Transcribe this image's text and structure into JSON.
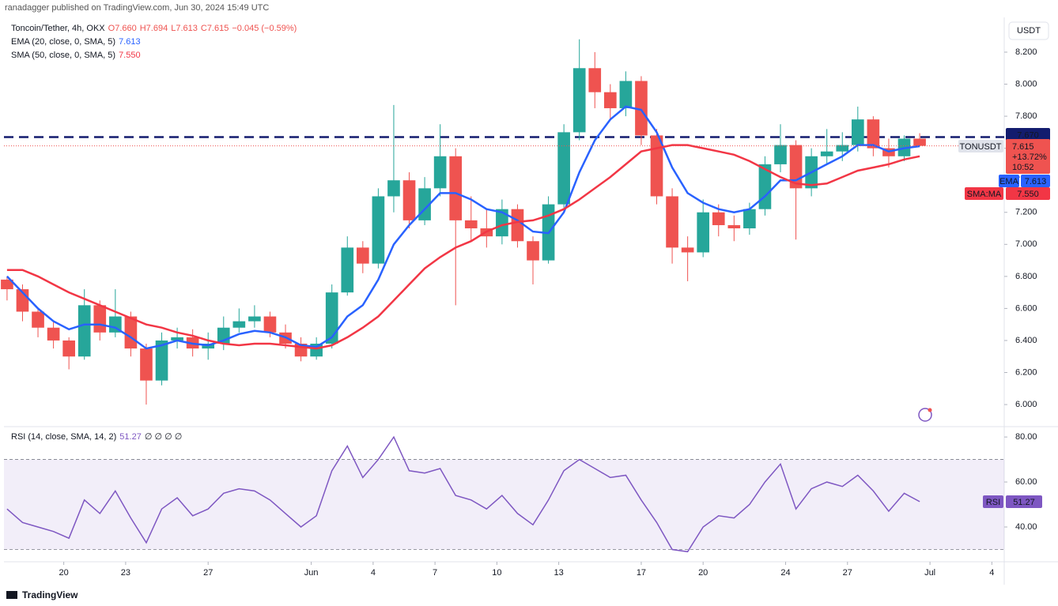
{
  "ui": {
    "publisher": "ranadagger published on TradingView.com, Jun 30, 2024 15:49 UTC",
    "legend": {
      "symbol": "Toncoin/Tether, 4h, OKX",
      "o": "O7.660",
      "h": "H7.694",
      "l": "L7.613",
      "c": "C7.615",
      "change": "−0.045 (−0.59%)",
      "ema": "EMA (20, close, 0, SMA, 5)",
      "ema_value": "7.613",
      "sma": "SMA (50, close, 0, SMA, 5)",
      "sma_value": "7.550",
      "rsi": "RSI (14, close, SMA, 14, 2)",
      "rsi_value": "51.27",
      "rsi_extra": "∅ ∅ ∅ ∅"
    },
    "currency": "USDT",
    "badges": {
      "last_symbol": "TONUSDT",
      "last_price": "7.615",
      "last_change": "+13.72%",
      "countdown": "10:52",
      "ema_tag": "EMA",
      "ema_value": "7.613",
      "sma_tag": "SMA:MA",
      "sma_value": "7.550",
      "rsi_tag": "RSI",
      "rsi_value": "51.27"
    },
    "brand": "TradingView"
  },
  "chart_data": {
    "type": "candlestick",
    "up_color": "#26a69a",
    "down_color": "#ef5350",
    "x": [
      -2.75,
      -2,
      -1.25,
      -0.5,
      0.25,
      1,
      1.75,
      2.5,
      3.25,
      4,
      4.75,
      5.5,
      6.25,
      7,
      7.75,
      8.5,
      9.25,
      10,
      10.75,
      11.5,
      12.25,
      13,
      13.75,
      14.5,
      15.25,
      16,
      16.75,
      17.5,
      18.25,
      19,
      19.75,
      20.5,
      21.25,
      22,
      22.75,
      23.5,
      24.25,
      25,
      25.75,
      26.5,
      27.25,
      28,
      28.75,
      29.5,
      30.25,
      31,
      31.75,
      32.5,
      33.25,
      34,
      34.75,
      35.5,
      36.25,
      37,
      37.75,
      38.5,
      39.25,
      40,
      40.75,
      41.5
    ],
    "open": [
      6.78,
      6.72,
      6.58,
      6.48,
      6.4,
      6.3,
      6.62,
      6.45,
      6.55,
      6.35,
      6.15,
      6.4,
      6.42,
      6.35,
      6.38,
      6.48,
      6.52,
      6.55,
      6.45,
      6.38,
      6.3,
      6.38,
      6.7,
      6.98,
      6.88,
      7.3,
      7.4,
      7.15,
      7.35,
      7.55,
      7.15,
      7.1,
      7.05,
      7.22,
      7.02,
      6.9,
      7.25,
      7.7,
      8.1,
      7.95,
      7.85,
      8.02,
      7.68,
      7.3,
      6.98,
      6.95,
      7.2,
      7.12,
      7.1,
      7.22,
      7.5,
      7.62,
      7.35,
      7.55,
      7.58,
      7.62,
      7.78,
      7.6,
      7.55,
      7.66
    ],
    "high": [
      6.8,
      6.75,
      6.6,
      6.52,
      6.42,
      6.72,
      6.65,
      6.72,
      6.58,
      6.38,
      6.45,
      6.48,
      6.47,
      6.45,
      6.55,
      6.6,
      6.62,
      6.58,
      6.5,
      6.42,
      6.42,
      6.75,
      7.05,
      7.02,
      7.35,
      7.87,
      7.45,
      7.42,
      7.75,
      7.6,
      7.3,
      7.22,
      7.28,
      7.25,
      7.05,
      7.3,
      7.75,
      8.28,
      8.2,
      8.0,
      8.08,
      8.05,
      7.72,
      7.35,
      7.05,
      7.28,
      7.25,
      7.18,
      7.26,
      7.55,
      7.75,
      7.65,
      7.6,
      7.72,
      7.7,
      7.86,
      7.8,
      7.66,
      7.68,
      7.694
    ],
    "low": [
      6.65,
      6.52,
      6.42,
      6.35,
      6.22,
      6.28,
      6.4,
      6.42,
      6.3,
      6.0,
      6.12,
      6.35,
      6.3,
      6.28,
      6.34,
      6.45,
      6.48,
      6.42,
      6.35,
      6.27,
      6.28,
      6.35,
      6.68,
      6.82,
      6.85,
      7.2,
      7.1,
      7.12,
      7.3,
      6.62,
      7.02,
      6.98,
      7.0,
      6.98,
      6.75,
      6.88,
      7.22,
      7.65,
      7.85,
      7.78,
      7.8,
      7.62,
      7.25,
      6.88,
      6.77,
      6.92,
      7.05,
      7.02,
      7.06,
      7.18,
      7.45,
      7.03,
      7.3,
      7.5,
      7.52,
      7.58,
      7.55,
      7.48,
      7.52,
      7.613
    ],
    "close": [
      6.72,
      6.58,
      6.48,
      6.4,
      6.3,
      6.62,
      6.45,
      6.55,
      6.35,
      6.15,
      6.4,
      6.42,
      6.35,
      6.38,
      6.48,
      6.52,
      6.55,
      6.45,
      6.38,
      6.3,
      6.38,
      6.7,
      6.98,
      6.88,
      7.3,
      7.4,
      7.15,
      7.35,
      7.55,
      7.15,
      7.1,
      7.05,
      7.22,
      7.02,
      6.9,
      7.25,
      7.7,
      8.1,
      7.95,
      7.85,
      8.02,
      7.68,
      7.3,
      6.98,
      6.95,
      7.2,
      7.12,
      7.1,
      7.22,
      7.5,
      7.62,
      7.35,
      7.55,
      7.58,
      7.62,
      7.78,
      7.6,
      7.55,
      7.66,
      7.615
    ],
    "series": [
      {
        "name": "EMA",
        "color": "#2962ff",
        "values": [
          6.8,
          6.7,
          6.6,
          6.52,
          6.47,
          6.5,
          6.5,
          6.48,
          6.42,
          6.35,
          6.37,
          6.4,
          6.38,
          6.37,
          6.4,
          6.44,
          6.46,
          6.45,
          6.42,
          6.37,
          6.36,
          6.42,
          6.55,
          6.62,
          6.78,
          7.0,
          7.12,
          7.22,
          7.32,
          7.32,
          7.28,
          7.22,
          7.2,
          7.15,
          7.08,
          7.07,
          7.2,
          7.45,
          7.65,
          7.78,
          7.86,
          7.84,
          7.7,
          7.48,
          7.32,
          7.26,
          7.22,
          7.2,
          7.22,
          7.3,
          7.4,
          7.4,
          7.45,
          7.5,
          7.55,
          7.62,
          7.62,
          7.58,
          7.6,
          7.613
        ]
      },
      {
        "name": "SMA:MA",
        "color": "#f23645",
        "values": [
          6.84,
          6.84,
          6.8,
          6.75,
          6.7,
          6.66,
          6.62,
          6.58,
          6.54,
          6.5,
          6.48,
          6.45,
          6.43,
          6.4,
          6.38,
          6.37,
          6.38,
          6.38,
          6.37,
          6.36,
          6.35,
          6.37,
          6.42,
          6.48,
          6.55,
          6.65,
          6.75,
          6.85,
          6.92,
          6.98,
          7.02,
          7.08,
          7.12,
          7.14,
          7.15,
          7.18,
          7.22,
          7.28,
          7.35,
          7.42,
          7.5,
          7.58,
          7.6,
          7.62,
          7.62,
          7.6,
          7.58,
          7.56,
          7.52,
          7.47,
          7.42,
          7.38,
          7.37,
          7.38,
          7.42,
          7.46,
          7.48,
          7.5,
          7.53,
          7.55
        ]
      }
    ],
    "hline": {
      "value": 7.67,
      "label": "7.670",
      "color": "#131c6e"
    },
    "ylim": [
      5.872,
      8.417
    ],
    "yticks": [
      {
        "value": 6.0,
        "label": "6.000"
      },
      {
        "value": 6.2,
        "label": "6.200"
      },
      {
        "value": 6.4,
        "label": "6.400"
      },
      {
        "value": 6.6,
        "label": "6.600"
      },
      {
        "value": 6.8,
        "label": "6.800"
      },
      {
        "value": 7.0,
        "label": "7.000"
      },
      {
        "value": 7.2,
        "label": "7.200"
      },
      {
        "value": 7.4,
        "label": "7.400"
      },
      {
        "value": 7.6,
        "label": "7.600"
      },
      {
        "value": 7.8,
        "label": "7.800"
      },
      {
        "value": 8.0,
        "label": "8.000"
      },
      {
        "value": 8.2,
        "label": "8.200"
      }
    ],
    "xlim": [
      -2.9,
      45.6
    ],
    "xticks": [
      {
        "value": 0,
        "label": "20"
      },
      {
        "value": 3,
        "label": "23"
      },
      {
        "value": 7,
        "label": "27"
      },
      {
        "value": 12,
        "label": "Jun"
      },
      {
        "value": 15,
        "label": "4"
      },
      {
        "value": 18,
        "label": "7"
      },
      {
        "value": 21,
        "label": "10"
      },
      {
        "value": 24,
        "label": "13"
      },
      {
        "value": 28,
        "label": "17"
      },
      {
        "value": 31,
        "label": "20"
      },
      {
        "value": 35,
        "label": "24"
      },
      {
        "value": 38,
        "label": "27"
      },
      {
        "value": 42,
        "label": "Jul"
      },
      {
        "value": 45,
        "label": "4"
      }
    ],
    "rsi": {
      "color": "#7e57c2",
      "values": [
        48,
        42,
        40,
        38,
        35,
        52,
        46,
        56,
        44,
        33,
        48,
        53,
        45,
        48,
        55,
        57,
        56,
        52,
        46,
        40,
        45,
        65,
        76,
        62,
        70,
        80,
        65,
        64,
        66,
        54,
        52,
        48,
        54,
        46,
        41,
        52,
        65,
        70,
        66,
        62,
        63,
        52,
        42,
        30,
        29,
        40,
        45,
        44,
        50,
        60,
        68,
        48,
        57,
        60,
        58,
        63,
        56,
        47,
        55,
        51.27
      ],
      "band": [
        30,
        70
      ],
      "ylim": [
        24.9,
        83.9
      ],
      "yticks": [
        {
          "value": 40,
          "label": "40.00"
        },
        {
          "value": 60,
          "label": "60.00"
        },
        {
          "value": 80,
          "label": "80.00"
        }
      ]
    }
  }
}
